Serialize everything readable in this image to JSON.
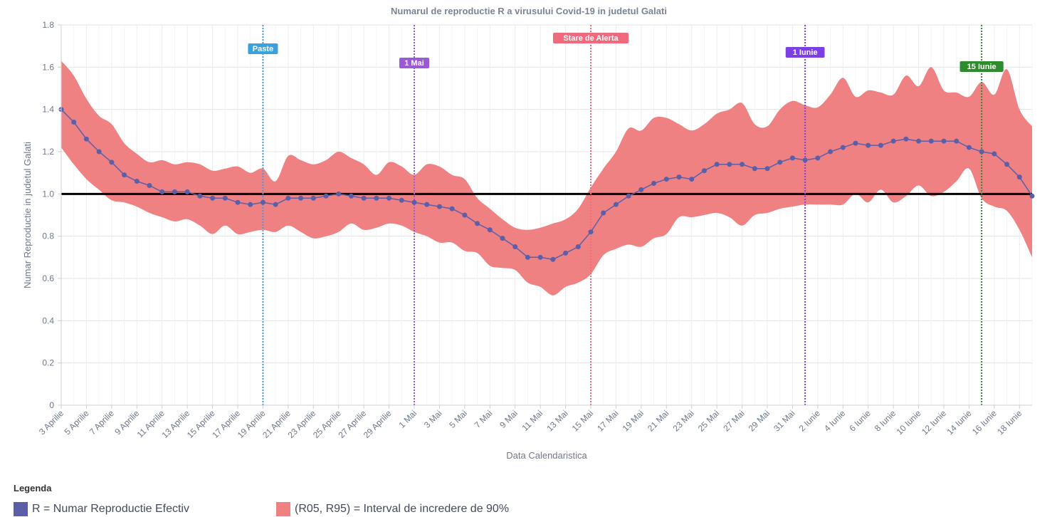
{
  "chart_data": {
    "type": "line",
    "title": "Numarul de reproductie R a virusului Covid-19 in judetul Galati",
    "xlabel": "Data Calendaristica",
    "ylabel": "Numar Reproductie in judetul Galati",
    "ylim": [
      0,
      1.8
    ],
    "yticks": [
      "0",
      "0.2",
      "0.4",
      "0.6",
      "0.8",
      "1.0",
      "1.2",
      "1.4",
      "1.6",
      "1.8"
    ],
    "grid": true,
    "reference_line": 1.0,
    "x_tick_labels": [
      "3 Aprilie",
      "5 Aprilie",
      "7 Aprilie",
      "9 Aprilie",
      "11 Aprilie",
      "13 Aprilie",
      "15 Aprilie",
      "17 Aprilie",
      "19 Aprilie",
      "21 Aprilie",
      "23 Aprilie",
      "25 Aprilie",
      "27 Aprilie",
      "29 Aprilie",
      "1 Mai",
      "3 Mai",
      "5 Mai",
      "7 Mai",
      "9 Mai",
      "11 Mai",
      "13 Mai",
      "15 Mai",
      "17 Mai",
      "19 Mai",
      "21 Mai",
      "23 Mai",
      "25 Mai",
      "27 Mai",
      "29 Mai",
      "31 Mai",
      "2 Iunie",
      "4 Iunie",
      "6 Iunie",
      "8 Iunie",
      "10 Iunie",
      "12 Iunie",
      "14 Iunie",
      "16 Iunie",
      "18 Iunie"
    ],
    "series": [
      {
        "name": "R = Numar Reproductie Efectiv",
        "color": "#5b5fa8",
        "values": [
          1.4,
          1.34,
          1.26,
          1.2,
          1.15,
          1.09,
          1.06,
          1.04,
          1.01,
          1.01,
          1.01,
          0.99,
          0.98,
          0.98,
          0.96,
          0.95,
          0.96,
          0.95,
          0.98,
          0.98,
          0.98,
          0.99,
          1.0,
          0.99,
          0.98,
          0.98,
          0.98,
          0.97,
          0.96,
          0.95,
          0.94,
          0.93,
          0.9,
          0.86,
          0.83,
          0.79,
          0.75,
          0.7,
          0.7,
          0.69,
          0.72,
          0.75,
          0.82,
          0.91,
          0.95,
          0.99,
          1.02,
          1.05,
          1.07,
          1.08,
          1.07,
          1.11,
          1.14,
          1.14,
          1.14,
          1.12,
          1.12,
          1.15,
          1.17,
          1.16,
          1.17,
          1.2,
          1.22,
          1.24,
          1.23,
          1.23,
          1.25,
          1.26,
          1.25,
          1.25,
          1.25,
          1.25,
          1.22,
          1.2,
          1.19,
          1.14,
          1.08,
          0.99
        ]
      }
    ],
    "band": {
      "name": "(R05, R95) = Interval de incredere de 90%",
      "color": "#ef8183",
      "upper": [
        1.63,
        1.56,
        1.45,
        1.37,
        1.33,
        1.24,
        1.19,
        1.15,
        1.16,
        1.14,
        1.15,
        1.14,
        1.11,
        1.12,
        1.13,
        1.1,
        1.12,
        1.06,
        1.18,
        1.16,
        1.14,
        1.16,
        1.2,
        1.17,
        1.14,
        1.09,
        1.15,
        1.13,
        1.09,
        1.14,
        1.13,
        1.09,
        1.07,
        0.98,
        0.93,
        0.88,
        0.84,
        0.83,
        0.84,
        0.86,
        0.88,
        0.93,
        1.03,
        1.12,
        1.2,
        1.31,
        1.3,
        1.36,
        1.36,
        1.33,
        1.3,
        1.33,
        1.38,
        1.4,
        1.43,
        1.33,
        1.32,
        1.4,
        1.44,
        1.42,
        1.41,
        1.47,
        1.55,
        1.46,
        1.49,
        1.48,
        1.47,
        1.56,
        1.51,
        1.6,
        1.49,
        1.48,
        1.46,
        1.53,
        1.47,
        1.59,
        1.4,
        1.32
      ],
      "lower": [
        1.22,
        1.14,
        1.07,
        1.02,
        0.97,
        0.96,
        0.94,
        0.91,
        0.89,
        0.87,
        0.88,
        0.85,
        0.81,
        0.85,
        0.81,
        0.82,
        0.83,
        0.82,
        0.85,
        0.82,
        0.79,
        0.8,
        0.82,
        0.86,
        0.83,
        0.84,
        0.86,
        0.85,
        0.82,
        0.8,
        0.77,
        0.77,
        0.73,
        0.72,
        0.66,
        0.65,
        0.64,
        0.58,
        0.56,
        0.52,
        0.56,
        0.58,
        0.62,
        0.71,
        0.74,
        0.76,
        0.75,
        0.79,
        0.81,
        0.89,
        0.89,
        0.9,
        0.91,
        0.89,
        0.85,
        0.9,
        0.91,
        0.93,
        0.94,
        0.95,
        0.95,
        0.95,
        0.95,
        1.0,
        0.96,
        1.02,
        0.96,
        0.99,
        1.04,
        0.99,
        1.01,
        1.06,
        1.12,
        0.98,
        0.94,
        0.92,
        0.83,
        0.7
      ]
    },
    "annotations": [
      {
        "label": "Paste",
        "index": 16,
        "color": "#3ba1dc"
      },
      {
        "label": "1 Mai",
        "index": 28,
        "color": "#9b59d6"
      },
      {
        "label": "Stare de Alerta",
        "index": 42,
        "color": "#f06a7e"
      },
      {
        "label": "1 Iunie",
        "index": 59,
        "color": "#7b3fe4"
      },
      {
        "label": "15 Iunie",
        "index": 73,
        "color": "#2e8b2e"
      }
    ]
  },
  "legend": {
    "title": "Legenda",
    "items": [
      {
        "label": "R = Numar Reproductie Efectiv",
        "color": "#5b5fa8"
      },
      {
        "label": "(R05, R95) = Interval de incredere de 90%",
        "color": "#ef8183"
      }
    ]
  }
}
